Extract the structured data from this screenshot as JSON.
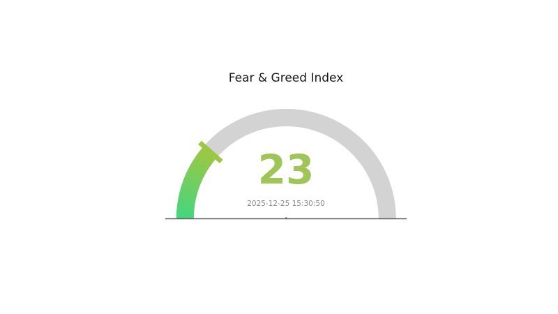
{
  "chart": {
    "title": "Fear & Greed Index",
    "value_text": "23",
    "timestamp": "2025-12-25 15:30:50"
  },
  "chart_data": {
    "type": "gauge",
    "title": "Fear & Greed Index",
    "value": 23,
    "min": 0,
    "max": 100,
    "arc_span_degrees": 180,
    "timestamp": "2025-12-25 15:30:50",
    "colors": {
      "track": "#d3d3d3",
      "value_start": "#45d67f",
      "value_end": "#9cc742",
      "pointer": "#9cc742",
      "value_text": "#9fc556",
      "baseline": "#5e5e5e",
      "timestamp_text": "#8a8a8a",
      "title_text": "#1a1a1a"
    }
  }
}
